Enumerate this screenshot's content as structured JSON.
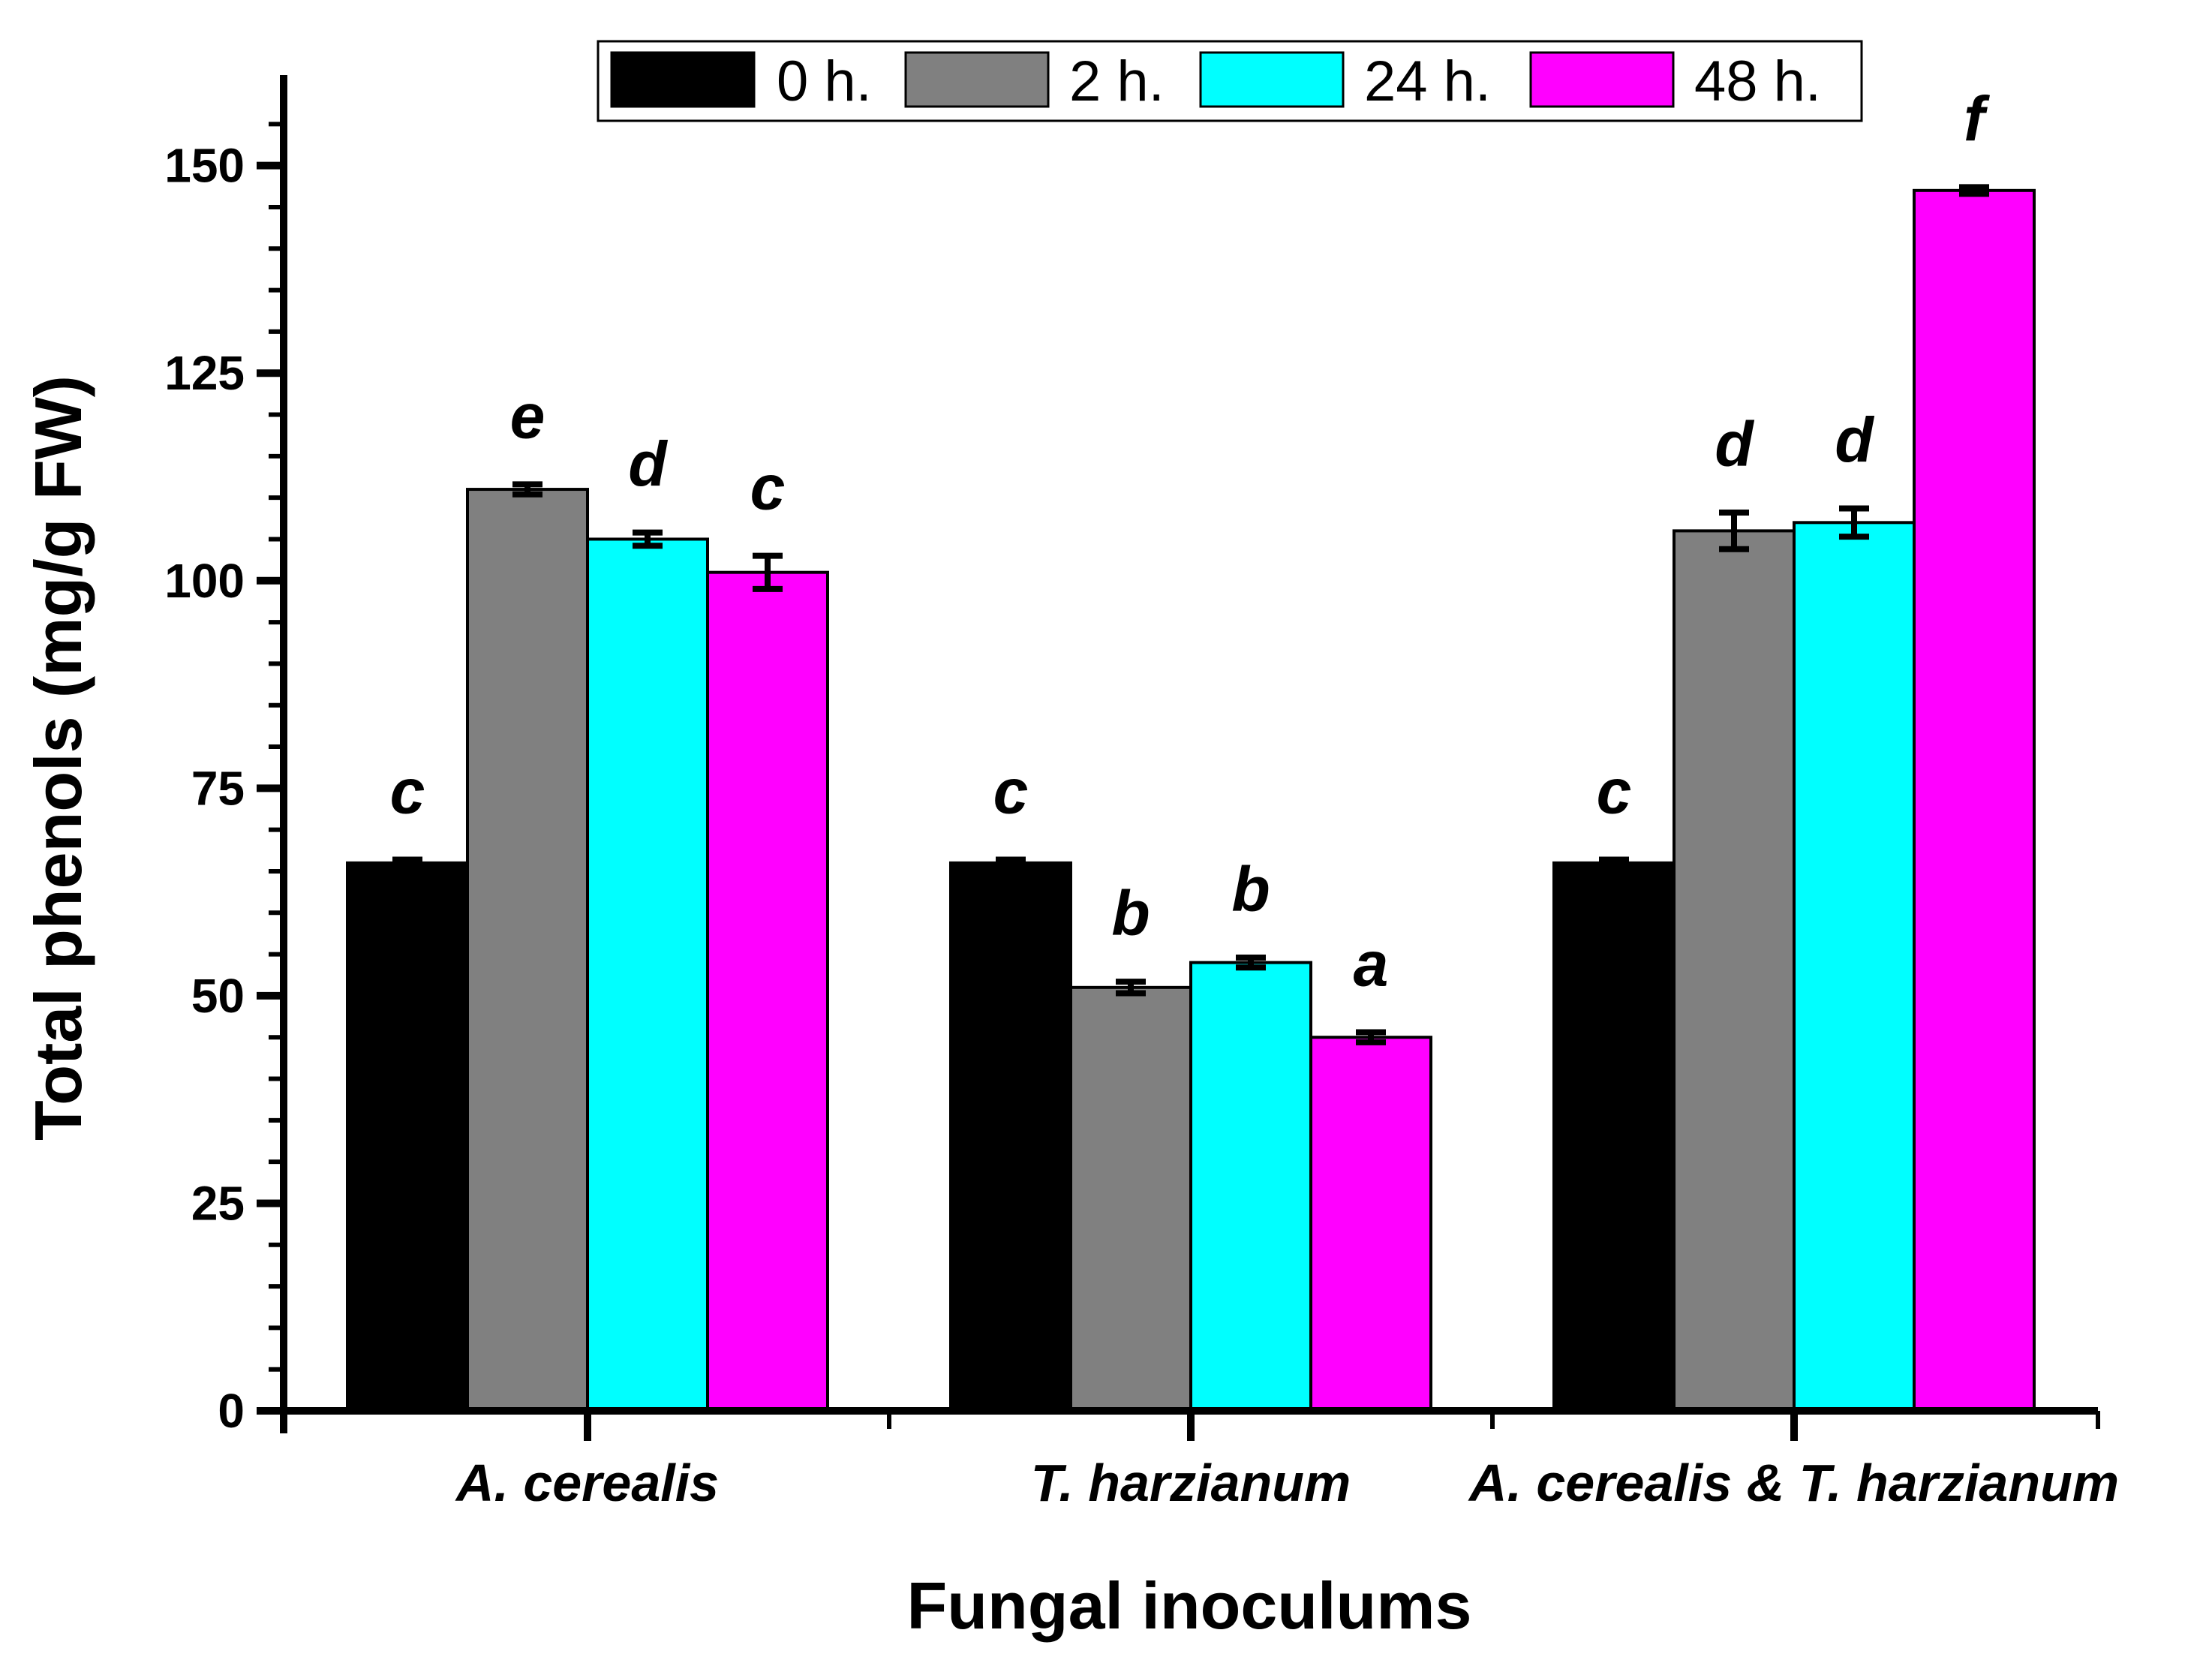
{
  "chart_data": {
    "type": "bar",
    "title": "",
    "xlabel": "Fungal inoculums",
    "ylabel": "Total phenols (mg/g FW)",
    "ylim": [
      0,
      160
    ],
    "yticks": [
      0,
      25,
      50,
      75,
      100,
      125,
      150
    ],
    "categories": [
      "A. cerealis",
      "T. harzianum",
      "A. cerealis & T. harzianum"
    ],
    "series": [
      {
        "name": "0 h.",
        "color": "#000000",
        "values": [
          66,
          66,
          66
        ],
        "errors": [
          0.4,
          0.4,
          0.4
        ],
        "labels": [
          "c",
          "c",
          "c"
        ]
      },
      {
        "name": "2 h.",
        "color": "#808080",
        "values": [
          111,
          51,
          106
        ],
        "errors": [
          0.6,
          0.7,
          2.2
        ],
        "labels": [
          "e",
          "b",
          "d"
        ]
      },
      {
        "name": "24 h.",
        "color": "#00FFFF",
        "values": [
          105,
          54,
          107
        ],
        "errors": [
          0.8,
          0.6,
          1.7
        ],
        "labels": [
          "d",
          "b",
          "d"
        ]
      },
      {
        "name": "48 h.",
        "color": "#FF00FF",
        "values": [
          101,
          45,
          147
        ],
        "errors": [
          2.0,
          0.6,
          0.4
        ],
        "labels": [
          "c",
          "a",
          "f"
        ]
      }
    ],
    "legend_position": "top",
    "grid": false
  }
}
